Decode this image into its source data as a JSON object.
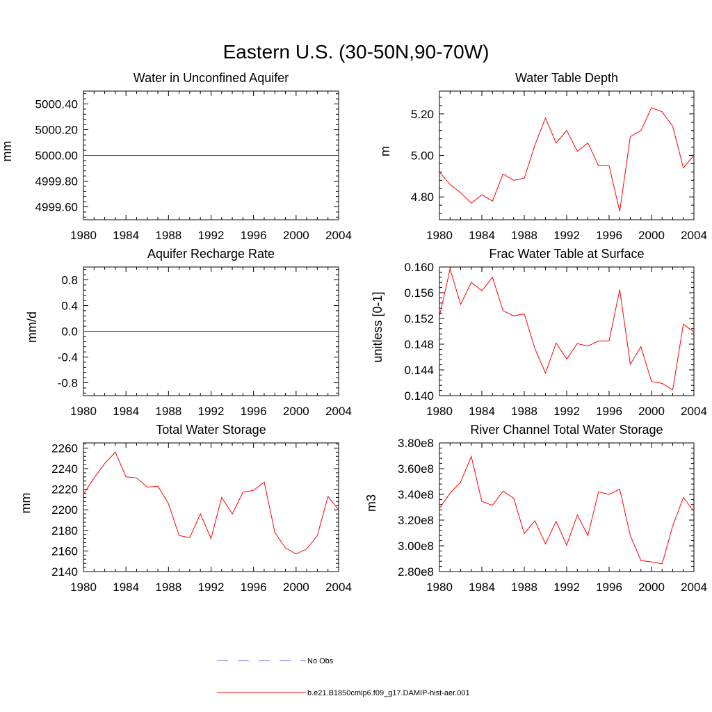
{
  "title": "Eastern U.S. (30-50N,90-70W)",
  "colors": {
    "model": "#ff0000",
    "obs": "#6666cc",
    "axis": "#000000"
  },
  "legend": {
    "obs_label": "No Obs",
    "model_label": "b.e21.B1850cmip6.f09_g17.DAMIP-hist-aer.001"
  },
  "chart_data": [
    {
      "type": "line",
      "title": "Water in Unconfined Aquifer",
      "ylabel": "mm",
      "xlim": [
        1980,
        2004
      ],
      "ylim": [
        4999.5,
        5000.5
      ],
      "xticks": [
        1980,
        1984,
        1988,
        1992,
        1996,
        2000,
        2004
      ],
      "yticks": [
        4999.6,
        4999.8,
        5000.0,
        5000.2,
        5000.4
      ],
      "ytick_labels": [
        "4999.60",
        "4999.80",
        "5000.00",
        "5000.20",
        "5000.40"
      ],
      "series": [
        {
          "x": [
            1980,
            2004
          ],
          "values": [
            5000.0,
            5000.0
          ]
        }
      ]
    },
    {
      "type": "line",
      "title": "Water Table Depth",
      "ylabel": "m",
      "xlim": [
        1980,
        2004
      ],
      "ylim": [
        4.69,
        5.31
      ],
      "xticks": [
        1980,
        1984,
        1988,
        1992,
        1996,
        2000,
        2004
      ],
      "yticks": [
        4.8,
        5.0,
        5.2
      ],
      "ytick_labels": [
        "4.80",
        "5.00",
        "5.20"
      ],
      "series": [
        {
          "x": [
            1980,
            1981,
            1982,
            1983,
            1984,
            1985,
            1986,
            1987,
            1988,
            1989,
            1990,
            1991,
            1992,
            1993,
            1994,
            1995,
            1996,
            1997,
            1998,
            1999,
            2000,
            2001,
            2002,
            2003,
            2004
          ],
          "values": [
            4.92,
            4.86,
            4.82,
            4.77,
            4.81,
            4.78,
            4.91,
            4.88,
            4.89,
            5.05,
            5.18,
            5.06,
            5.12,
            5.02,
            5.06,
            4.95,
            4.95,
            4.73,
            5.09,
            5.12,
            5.23,
            5.21,
            5.14,
            4.94,
            5.0
          ]
        }
      ]
    },
    {
      "type": "line",
      "title": "Aquifer Recharge Rate",
      "ylabel": "mm/d",
      "xlim": [
        1980,
        2004
      ],
      "ylim": [
        -1.0,
        1.0
      ],
      "xticks": [
        1980,
        1984,
        1988,
        1992,
        1996,
        2000,
        2004
      ],
      "yticks": [
        -0.8,
        -0.4,
        0.0,
        0.4,
        0.8
      ],
      "ytick_labels": [
        "-0.8",
        "-0.4",
        "0.0",
        "0.4",
        "0.8"
      ],
      "series": [
        {
          "x": [
            1980,
            2004
          ],
          "values": [
            0.0,
            0.0
          ]
        }
      ]
    },
    {
      "type": "line",
      "title": "Frac Water Table at Surface",
      "ylabel": "unitless [0-1]",
      "xlim": [
        1980,
        2004
      ],
      "ylim": [
        0.14,
        0.16
      ],
      "xticks": [
        1980,
        1984,
        1988,
        1992,
        1996,
        2000,
        2004
      ],
      "yticks": [
        0.14,
        0.144,
        0.148,
        0.152,
        0.156,
        0.16
      ],
      "ytick_labels": [
        "0.140",
        "0.144",
        "0.148",
        "0.152",
        "0.156",
        "0.160"
      ],
      "series": [
        {
          "x": [
            1980,
            1981,
            1982,
            1983,
            1984,
            1985,
            1986,
            1987,
            1988,
            1989,
            1990,
            1991,
            1992,
            1993,
            1994,
            1995,
            1996,
            1997,
            1998,
            1999,
            2000,
            2001,
            2002,
            2003,
            2004
          ],
          "values": [
            0.1523,
            0.1597,
            0.1542,
            0.1576,
            0.1563,
            0.1584,
            0.1532,
            0.1524,
            0.1527,
            0.1473,
            0.1435,
            0.1482,
            0.1457,
            0.1481,
            0.1477,
            0.1485,
            0.1485,
            0.1565,
            0.1449,
            0.1476,
            0.1422,
            0.1419,
            0.1409,
            0.1511,
            0.1499
          ]
        }
      ]
    },
    {
      "type": "line",
      "title": "Total Water Storage",
      "ylabel": "mm",
      "xlim": [
        1980,
        2004
      ],
      "ylim": [
        2140,
        2265
      ],
      "xticks": [
        1980,
        1984,
        1988,
        1992,
        1996,
        2000,
        2004
      ],
      "yticks": [
        2140,
        2160,
        2180,
        2200,
        2220,
        2240,
        2260
      ],
      "ytick_labels": [
        "2140",
        "2160",
        "2180",
        "2200",
        "2220",
        "2240",
        "2260"
      ],
      "series": [
        {
          "x": [
            1980,
            1981,
            1982,
            1983,
            1984,
            1985,
            1986,
            1987,
            1988,
            1989,
            1990,
            1991,
            1992,
            1993,
            1994,
            1995,
            1996,
            1997,
            1998,
            1999,
            2000,
            2001,
            2002,
            2003,
            2004
          ],
          "values": [
            2215,
            2231,
            2245,
            2256,
            2232,
            2231,
            2222,
            2223,
            2206,
            2175,
            2173,
            2196,
            2172,
            2212,
            2196,
            2217,
            2219,
            2227,
            2178,
            2163,
            2157,
            2162,
            2175,
            2213,
            2200
          ]
        }
      ]
    },
    {
      "type": "line",
      "title": "River Channel Total Water Storage",
      "ylabel": "m3",
      "xlim": [
        1980,
        2004
      ],
      "ylim": [
        280000000,
        380000000
      ],
      "xticks": [
        1980,
        1984,
        1988,
        1992,
        1996,
        2000,
        2004
      ],
      "yticks": [
        280000000,
        300000000,
        320000000,
        340000000,
        360000000,
        380000000
      ],
      "ytick_labels": [
        "2.80e8",
        "3.00e8",
        "3.20e8",
        "3.40e8",
        "3.60e8",
        "3.80e8"
      ],
      "series": [
        {
          "x": [
            1980,
            1981,
            1982,
            1983,
            1984,
            1985,
            1986,
            1987,
            1988,
            1989,
            1990,
            1991,
            1992,
            1993,
            1994,
            1995,
            1996,
            1997,
            1998,
            1999,
            2000,
            2001,
            2002,
            2003,
            2004
          ],
          "values": [
            329000000,
            341000000,
            349500000,
            369500000,
            334500000,
            331500000,
            342500000,
            337000000,
            309500000,
            319500000,
            301500000,
            319000000,
            300500000,
            324000000,
            308000000,
            342000000,
            340000000,
            344000000,
            308000000,
            288500000,
            287500000,
            286000000,
            315500000,
            337500000,
            327000000
          ]
        }
      ]
    }
  ]
}
